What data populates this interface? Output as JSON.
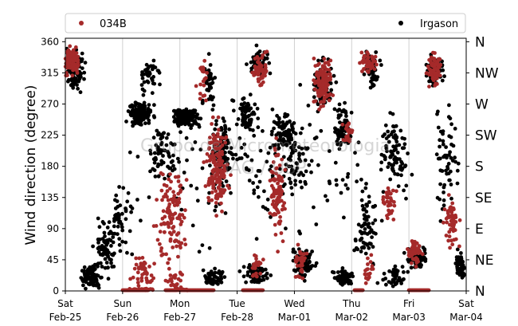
{
  "chart_data": {
    "type": "scatter",
    "ylabel": "Wind direction (degree)",
    "ylim": [
      0,
      365
    ],
    "xlim": [
      "2023-02-25",
      "2023-03-04"
    ],
    "yticks": [
      "0",
      "45",
      "90",
      "135",
      "180",
      "225",
      "270",
      "315",
      "360"
    ],
    "ytick_values": [
      0,
      45,
      90,
      135,
      180,
      225,
      270,
      315,
      360
    ],
    "compass": [
      "N",
      "NE",
      "E",
      "SE",
      "S",
      "SW",
      "W",
      "NW",
      "N"
    ],
    "xticks": [
      {
        "day": "Sat",
        "date": "Feb-25"
      },
      {
        "day": "Sun",
        "date": "Feb-26"
      },
      {
        "day": "Mon",
        "date": "Feb-27"
      },
      {
        "day": "Tue",
        "date": "Feb-28"
      },
      {
        "day": "Wed",
        "date": "Mar-01"
      },
      {
        "day": "Thu",
        "date": "Mar-02"
      },
      {
        "day": "Fri",
        "date": "Mar-03"
      },
      {
        "day": "Sat",
        "date": "Mar-04"
      }
    ],
    "grid": "vertical",
    "legend_position": "top",
    "watermark": [
      "Grupo de Micrometeorologia",
      "IAG / USP"
    ],
    "series": [
      {
        "name": "034B",
        "color": "#a52a2a",
        "clusters": [
          {
            "day": 0.1,
            "dir": 330,
            "dt": 0.25,
            "dd": 30,
            "n": 120
          },
          {
            "day": 1.35,
            "dir": 30,
            "dt": 0.3,
            "dd": 35,
            "n": 45
          },
          {
            "day": 1.9,
            "dir": 20,
            "dt": 0.25,
            "dd": 30,
            "n": 25
          },
          {
            "day": 1.85,
            "dir": 110,
            "dt": 0.4,
            "dd": 110,
            "n": 110
          },
          {
            "day": 1.35,
            "dir": 2,
            "dt": 0.45,
            "dd": 2,
            "n": 45
          },
          {
            "day": 2.05,
            "dir": 2,
            "dt": 0.2,
            "dd": 2,
            "n": 20
          },
          {
            "day": 2.4,
            "dir": 310,
            "dt": 0.15,
            "dd": 50,
            "n": 20
          },
          {
            "day": 2.65,
            "dir": 180,
            "dt": 0.3,
            "dd": 100,
            "n": 160
          },
          {
            "day": 3.4,
            "dir": 320,
            "dt": 0.2,
            "dd": 40,
            "n": 60
          },
          {
            "day": 3.35,
            "dir": 35,
            "dt": 0.2,
            "dd": 30,
            "n": 25
          },
          {
            "day": 3.7,
            "dir": 140,
            "dt": 0.2,
            "dd": 110,
            "n": 90
          },
          {
            "day": 4.1,
            "dir": 40,
            "dt": 0.15,
            "dd": 40,
            "n": 35
          },
          {
            "day": 4.5,
            "dir": 300,
            "dt": 0.25,
            "dd": 55,
            "n": 110
          },
          {
            "day": 4.95,
            "dir": 230,
            "dt": 0.15,
            "dd": 30,
            "n": 25
          },
          {
            "day": 5.3,
            "dir": 30,
            "dt": 0.15,
            "dd": 30,
            "n": 20
          },
          {
            "day": 5.3,
            "dir": 330,
            "dt": 0.25,
            "dd": 30,
            "n": 50
          },
          {
            "day": 5.65,
            "dir": 130,
            "dt": 0.2,
            "dd": 40,
            "n": 40
          },
          {
            "day": 6.1,
            "dir": 55,
            "dt": 0.2,
            "dd": 30,
            "n": 50
          },
          {
            "day": 6.45,
            "dir": 320,
            "dt": 0.2,
            "dd": 40,
            "n": 70
          },
          {
            "day": 6.75,
            "dir": 100,
            "dt": 0.2,
            "dd": 70,
            "n": 50
          }
        ]
      },
      {
        "name": "Irgason",
        "color": "#000000",
        "clusters": [
          {
            "day": 0.15,
            "dir": 320,
            "dt": 0.3,
            "dd": 45,
            "n": 110
          },
          {
            "day": 0.45,
            "dir": 20,
            "dt": 0.3,
            "dd": 25,
            "n": 80
          },
          {
            "day": 0.7,
            "dir": 60,
            "dt": 0.3,
            "dd": 60,
            "n": 60
          },
          {
            "day": 0.95,
            "dir": 100,
            "dt": 0.35,
            "dd": 80,
            "n": 50
          },
          {
            "day": 1.3,
            "dir": 255,
            "dt": 0.35,
            "dd": 30,
            "n": 120
          },
          {
            "day": 1.45,
            "dir": 310,
            "dt": 0.3,
            "dd": 40,
            "n": 40
          },
          {
            "day": 1.7,
            "dir": 200,
            "dt": 0.3,
            "dd": 70,
            "n": 60
          },
          {
            "day": 2.1,
            "dir": 250,
            "dt": 0.35,
            "dd": 22,
            "n": 170
          },
          {
            "day": 2.5,
            "dir": 300,
            "dt": 0.2,
            "dd": 50,
            "n": 40
          },
          {
            "day": 2.75,
            "dir": 200,
            "dt": 0.3,
            "dd": 70,
            "n": 100
          },
          {
            "day": 2.6,
            "dir": 20,
            "dt": 0.3,
            "dd": 20,
            "n": 50
          },
          {
            "day": 3.15,
            "dir": 255,
            "dt": 0.3,
            "dd": 40,
            "n": 60
          },
          {
            "day": 3.3,
            "dir": 25,
            "dt": 0.35,
            "dd": 25,
            "n": 70
          },
          {
            "day": 3.4,
            "dir": 330,
            "dt": 0.3,
            "dd": 30,
            "n": 60
          },
          {
            "day": 3.8,
            "dir": 230,
            "dt": 0.35,
            "dd": 50,
            "n": 70
          },
          {
            "day": 4.15,
            "dir": 40,
            "dt": 0.3,
            "dd": 35,
            "n": 90
          },
          {
            "day": 4.0,
            "dir": 200,
            "dt": 0.4,
            "dd": 90,
            "n": 60
          },
          {
            "day": 4.5,
            "dir": 300,
            "dt": 0.3,
            "dd": 55,
            "n": 90
          },
          {
            "day": 4.85,
            "dir": 240,
            "dt": 0.25,
            "dd": 55,
            "n": 60
          },
          {
            "day": 4.85,
            "dir": 20,
            "dt": 0.3,
            "dd": 20,
            "n": 60
          },
          {
            "day": 5.25,
            "dir": 90,
            "dt": 0.3,
            "dd": 90,
            "n": 70
          },
          {
            "day": 5.35,
            "dir": 320,
            "dt": 0.2,
            "dd": 40,
            "n": 60
          },
          {
            "day": 5.75,
            "dir": 200,
            "dt": 0.35,
            "dd": 90,
            "n": 80
          },
          {
            "day": 5.75,
            "dir": 20,
            "dt": 0.3,
            "dd": 20,
            "n": 40
          },
          {
            "day": 6.15,
            "dir": 50,
            "dt": 0.3,
            "dd": 30,
            "n": 80
          },
          {
            "day": 6.45,
            "dir": 320,
            "dt": 0.25,
            "dd": 40,
            "n": 80
          },
          {
            "day": 6.65,
            "dir": 190,
            "dt": 0.3,
            "dd": 120,
            "n": 60
          },
          {
            "day": 6.9,
            "dir": 40,
            "dt": 0.15,
            "dd": 40,
            "n": 50
          },
          {
            "day": 3.5,
            "dir": 180,
            "dt": 3.5,
            "dd": 180,
            "n": 180
          }
        ]
      }
    ],
    "calm_segments": [
      [
        1.0,
        1.45
      ],
      [
        1.75,
        1.95
      ],
      [
        2.0,
        2.6
      ],
      [
        3.1,
        3.45
      ],
      [
        5.05,
        5.2
      ],
      [
        6.0,
        6.35
      ]
    ]
  }
}
